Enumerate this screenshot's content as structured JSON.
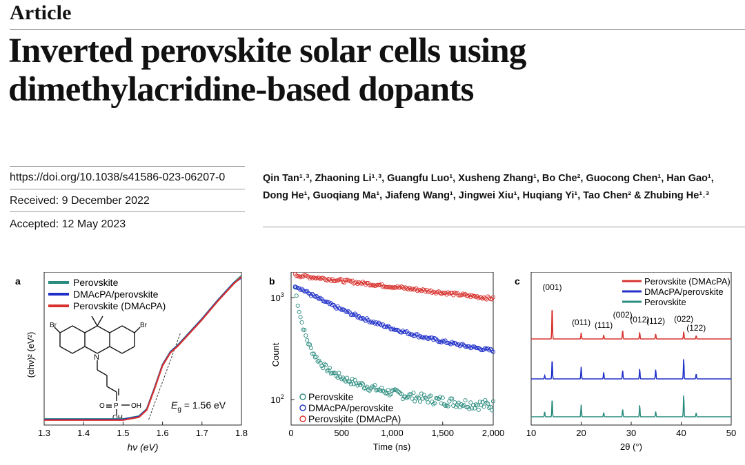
{
  "header": {
    "section_label": "Article",
    "title_line1": "Inverted perovskite solar cells using",
    "title_line2": "dimethylacridine-based dopants"
  },
  "meta": {
    "doi": "https://doi.org/10.1038/s41586-023-06207-0",
    "received": "Received: 9 December 2022",
    "accepted": "Accepted: 12 May 2023"
  },
  "authors": {
    "line1": "Qin Tan¹˒³, Zhaoning Li¹˒³, Guangfu Luo¹, Xusheng Zhang¹, Bo Che², Guocong Chen¹, Han Gao¹,",
    "line2": "Dong He¹, Guoqiang Ma¹, Jiafeng Wang¹, Jingwei Xiu¹, Huqiang Yi¹, Tao Chen² & Zhubing He¹˒³"
  },
  "colors": {
    "teal": "#2a8c7e",
    "blue": "#1f2fc8",
    "red": "#d8322e"
  },
  "chart_data": [
    {
      "panel": "a",
      "type": "line",
      "xlabel": "hν (eV)",
      "ylabel": "(αhν)² (eV²)",
      "xlim": [
        1.3,
        1.8
      ],
      "xticks": [
        "1.3",
        "1.4",
        "1.5",
        "1.6",
        "1.7",
        "1.8"
      ],
      "annotation": "Eg = 1.56 eV",
      "annotation_sub": "g",
      "molecule_labels": [
        "Br",
        "Br",
        "N",
        "P",
        "O",
        "OH",
        "OH"
      ],
      "legend": [
        "Perovskite",
        "DMAcPA/perovskite",
        "Perovskite (DMAcPA)"
      ],
      "series": [
        {
          "name": "Perovskite",
          "color": "#2a8c7e",
          "x": [
            1.3,
            1.4,
            1.5,
            1.54,
            1.56,
            1.58,
            1.6,
            1.62,
            1.64,
            1.66,
            1.7,
            1.74,
            1.78,
            1.8
          ],
          "y": [
            0.0,
            0.0,
            0.0,
            0.02,
            0.07,
            0.22,
            0.38,
            0.47,
            0.52,
            0.58,
            0.7,
            0.83,
            0.95,
            1.0
          ]
        },
        {
          "name": "DMAcPA/perovskite",
          "color": "#1f2fc8",
          "x": [
            1.3,
            1.4,
            1.5,
            1.54,
            1.56,
            1.58,
            1.6,
            1.62,
            1.64,
            1.66,
            1.7,
            1.74,
            1.78,
            1.8
          ],
          "y": [
            0.0,
            0.0,
            0.0,
            0.02,
            0.07,
            0.22,
            0.38,
            0.47,
            0.52,
            0.58,
            0.7,
            0.83,
            0.95,
            0.99
          ]
        },
        {
          "name": "Perovskite (DMAcPA)",
          "color": "#d8322e",
          "x": [
            1.3,
            1.4,
            1.5,
            1.54,
            1.56,
            1.58,
            1.6,
            1.62,
            1.64,
            1.66,
            1.7,
            1.74,
            1.78,
            1.8
          ],
          "y": [
            0.0,
            0.0,
            0.0,
            0.02,
            0.07,
            0.22,
            0.38,
            0.47,
            0.52,
            0.58,
            0.7,
            0.83,
            0.95,
            1.0
          ]
        }
      ]
    },
    {
      "panel": "b",
      "type": "scatter",
      "xlabel": "Time (ns)",
      "ylabel": "Count",
      "xlim": [
        0,
        2000
      ],
      "xticks": [
        "0",
        "500",
        "1,000",
        "1,500",
        "2,000"
      ],
      "ylim_log": [
        1.75,
        3.25
      ],
      "yticks": [
        {
          "label": "10",
          "exp": "3",
          "value": 3
        },
        {
          "label": "10",
          "exp": "2",
          "value": 2
        }
      ],
      "legend": [
        "Perovskite",
        "DMAcPA/perovskite",
        "Perovskite (DMAcPA)"
      ],
      "series": [
        {
          "name": "Perovskite",
          "color": "#2a8c7e",
          "log_count_start": 3.1,
          "log_count_end": 1.88,
          "shape": "biexponential"
        },
        {
          "name": "DMAcPA/perovskite",
          "color": "#1f2fc8",
          "log_count_start": 3.12,
          "log_count_end": 2.48,
          "shape": "exponential"
        },
        {
          "name": "Perovskite (DMAcPA)",
          "color": "#d8322e",
          "log_count_start": 3.22,
          "log_count_end": 2.99,
          "shape": "linear"
        }
      ]
    },
    {
      "panel": "c",
      "type": "line",
      "xlabel": "2θ (°)",
      "xlim": [
        10,
        50
      ],
      "xticks": [
        "10",
        "20",
        "30",
        "40",
        "50"
      ],
      "legend": [
        "Perovskite (DMAcPA)",
        "DMAcPA/perovskite",
        "Perovskite"
      ],
      "peak_labels": [
        {
          "label": "(001)",
          "x": 14.2
        },
        {
          "label": "(011)",
          "x": 20.0
        },
        {
          "label": "(111)",
          "x": 24.5
        },
        {
          "label": "(002)",
          "x": 28.3
        },
        {
          "label": "(012)",
          "x": 31.7
        },
        {
          "label": "(112)",
          "x": 34.9
        },
        {
          "label": "(022)",
          "x": 40.5
        },
        {
          "label": "(122)",
          "x": 43.0
        }
      ],
      "series": [
        {
          "name": "Perovskite (DMAcPA)",
          "color": "#d8322e",
          "peaks": [
            [
              14.2,
              1.0
            ],
            [
              20.0,
              0.18
            ],
            [
              24.5,
              0.12
            ],
            [
              28.3,
              0.25
            ],
            [
              31.7,
              0.2
            ],
            [
              34.9,
              0.15
            ],
            [
              40.5,
              0.22
            ],
            [
              43.0,
              0.1
            ]
          ]
        },
        {
          "name": "DMAcPA/perovskite",
          "color": "#1f2fc8",
          "peaks": [
            [
              12.7,
              0.1
            ],
            [
              14.2,
              0.6
            ],
            [
              20.0,
              0.35
            ],
            [
              24.5,
              0.2
            ],
            [
              28.3,
              0.25
            ],
            [
              31.7,
              0.3
            ],
            [
              34.9,
              0.28
            ],
            [
              40.5,
              0.6
            ],
            [
              43.0,
              0.15
            ]
          ]
        },
        {
          "name": "Perovskite",
          "color": "#2a8c7e",
          "peaks": [
            [
              12.7,
              0.15
            ],
            [
              14.2,
              0.55
            ],
            [
              20.0,
              0.35
            ],
            [
              24.5,
              0.13
            ],
            [
              28.3,
              0.22
            ],
            [
              31.7,
              0.35
            ],
            [
              34.9,
              0.16
            ],
            [
              40.5,
              0.65
            ],
            [
              43.0,
              0.12
            ]
          ]
        }
      ]
    }
  ]
}
